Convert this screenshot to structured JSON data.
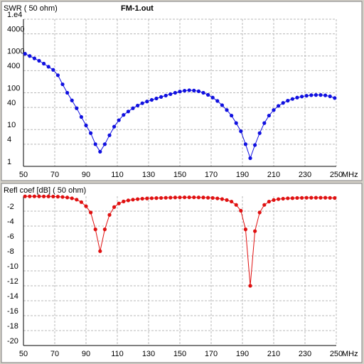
{
  "chart_data": [
    {
      "type": "line",
      "title": "SWR ( 50 ohm)",
      "subtitle": "FM-1.out",
      "xlabel": "MHz",
      "log_y": true,
      "grid": true,
      "color": "#1010e0",
      "x": [
        51,
        54,
        57,
        60,
        63,
        66,
        69,
        72,
        75,
        78,
        81,
        84,
        87,
        90,
        93,
        96,
        99,
        102,
        105,
        108,
        111,
        114,
        117,
        120,
        123,
        126,
        129,
        132,
        135,
        138,
        141,
        144,
        147,
        150,
        153,
        156,
        159,
        162,
        165,
        168,
        171,
        174,
        177,
        180,
        183,
        186,
        189,
        192,
        195,
        198,
        201,
        204,
        207,
        210,
        213,
        216,
        219,
        222,
        225,
        228,
        231,
        234,
        237,
        240,
        243,
        246,
        249
      ],
      "values": [
        1150,
        1000,
        860,
        740,
        620,
        510,
        420,
        300,
        170,
        100,
        62,
        38,
        22,
        13,
        8,
        4,
        2.5,
        4,
        7,
        12,
        18,
        25,
        31,
        38,
        45,
        52,
        58,
        64,
        70,
        77,
        84,
        92,
        100,
        108,
        114,
        117,
        115,
        110,
        100,
        88,
        74,
        60,
        46,
        34,
        24,
        15,
        9,
        4,
        1.67,
        3.8,
        8,
        15,
        24,
        34,
        44,
        53,
        61,
        68,
        74,
        79,
        83,
        86,
        87,
        87,
        85,
        80,
        72
      ],
      "xlim": [
        50,
        250
      ],
      "xticks": [
        50,
        70,
        90,
        110,
        130,
        150,
        170,
        190,
        210,
        230,
        250
      ],
      "ylim": [
        1,
        10000
      ],
      "yticks": [
        {
          "value": 10000,
          "label": "1.e4"
        },
        4000,
        1000,
        400,
        100,
        40,
        10,
        4,
        1
      ]
    },
    {
      "type": "line",
      "title": "Refl coef [dB] ( 50 ohm)",
      "xlabel": "MHz",
      "log_y": false,
      "grid": true,
      "color": "#e01010",
      "x": [
        51,
        54,
        57,
        60,
        63,
        66,
        69,
        72,
        75,
        78,
        81,
        84,
        87,
        90,
        93,
        96,
        99,
        102,
        105,
        108,
        111,
        114,
        117,
        120,
        123,
        126,
        129,
        132,
        135,
        138,
        141,
        144,
        147,
        150,
        153,
        156,
        159,
        162,
        165,
        168,
        171,
        174,
        177,
        180,
        183,
        186,
        189,
        192,
        195,
        198,
        201,
        204,
        207,
        210,
        213,
        216,
        219,
        222,
        225,
        228,
        231,
        234,
        237,
        240,
        243,
        246,
        249
      ],
      "values": [
        -0.02,
        -0.02,
        -0.02,
        -0.02,
        -0.03,
        -0.03,
        -0.04,
        -0.06,
        -0.1,
        -0.17,
        -0.28,
        -0.46,
        -0.79,
        -1.34,
        -2.18,
        -4.44,
        -7.36,
        -4.44,
        -2.5,
        -1.45,
        -0.97,
        -0.7,
        -0.56,
        -0.46,
        -0.39,
        -0.33,
        -0.3,
        -0.27,
        -0.25,
        -0.23,
        -0.21,
        -0.19,
        -0.17,
        -0.16,
        -0.15,
        -0.15,
        -0.15,
        -0.16,
        -0.17,
        -0.2,
        -0.23,
        -0.29,
        -0.38,
        -0.51,
        -0.72,
        -1.16,
        -1.94,
        -4.44,
        -12.0,
        -4.68,
        -2.18,
        -1.16,
        -0.72,
        -0.51,
        -0.39,
        -0.33,
        -0.28,
        -0.26,
        -0.23,
        -0.22,
        -0.21,
        -0.2,
        -0.2,
        -0.2,
        -0.2,
        -0.22,
        -0.24
      ],
      "xlim": [
        50,
        250
      ],
      "xticks": [
        50,
        70,
        90,
        110,
        130,
        150,
        170,
        190,
        210,
        230,
        250
      ],
      "ylim": [
        -20,
        0
      ],
      "yticks": [
        -2,
        -4,
        -6,
        -8,
        -10,
        -12,
        -14,
        -16,
        -18,
        -20
      ]
    }
  ]
}
